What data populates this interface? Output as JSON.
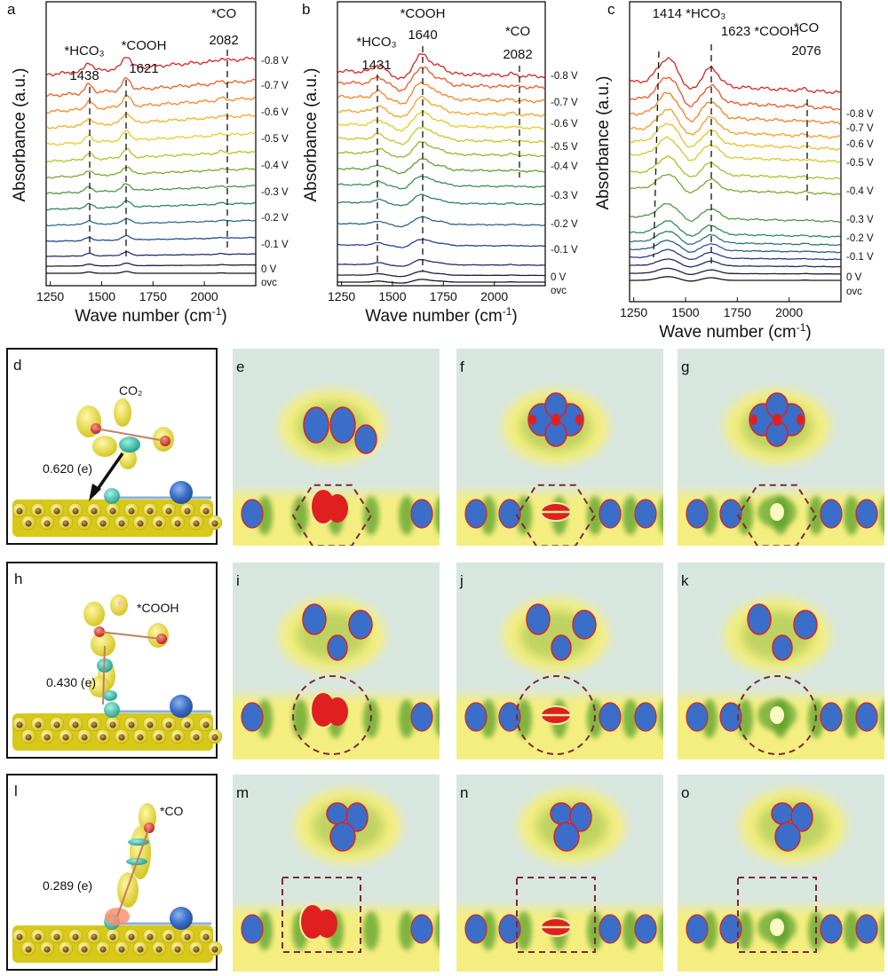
{
  "chart_data": [
    {
      "panel": "a",
      "type": "line",
      "xlabel": "Wave number (cm⁻¹)",
      "ylabel": "Absorbance (a.u.)",
      "xlim": [
        1230,
        2250
      ],
      "xticks": [
        "1250",
        "1500",
        "1750",
        "2000"
      ],
      "series": [
        "ovc",
        "0 V",
        "-0.1 V",
        "-0.2 V",
        "-0.3 V",
        "-0.4 V",
        "-0.5 V",
        "-0.6 V",
        "-0.7 V",
        "-0.8 V"
      ],
      "annotations": [
        {
          "text": [
            "*HCO₃",
            "1438"
          ],
          "x": 1438
        },
        {
          "text": [
            "*COOH",
            "1621"
          ],
          "x": 1621
        },
        {
          "text": [
            "*CO",
            "2082"
          ],
          "x": 2082
        }
      ]
    },
    {
      "panel": "b",
      "type": "line",
      "xlabel": "Wave number (cm⁻¹)",
      "ylabel": "Absorbance (a.u.)",
      "xlim": [
        1230,
        2250
      ],
      "xticks": [
        "1250",
        "1500",
        "1750",
        "2000"
      ],
      "series": [
        "ovc",
        "0 V",
        "-0.1 V",
        "-0.2 V",
        "-0.3 V",
        "-0.4 V",
        "-0.5 V",
        "-0.6 V",
        "-0.7 V",
        "-0.8 V"
      ],
      "annotations": [
        {
          "text": [
            "*HCO₃",
            "1431"
          ],
          "x": 1431
        },
        {
          "text": [
            "*COOH",
            "1640"
          ],
          "x": 1640
        },
        {
          "text": [
            "*CO",
            "2082"
          ],
          "x": 2082
        }
      ]
    },
    {
      "panel": "c",
      "type": "line",
      "xlabel": "Wave number (cm⁻¹)",
      "ylabel": "Absorbance (a.u.)",
      "xlim": [
        1230,
        2250
      ],
      "xticks": [
        "1250",
        "1500",
        "1750",
        "2000"
      ],
      "series": [
        "ovc",
        "0 V",
        "-0.1 V",
        "-0.2 V",
        "-0.3 V",
        "-0.4 V",
        "-0.5 V",
        "-0.6 V",
        "-0.7 V",
        "-0.8 V"
      ],
      "annotations": [
        {
          "text": [
            "1414 *HCO₃",
            ""
          ],
          "x": 1414
        },
        {
          "text": [
            "1623 *COOH",
            ""
          ],
          "x": 1623
        },
        {
          "text": [
            "*CO",
            "2076"
          ],
          "x": 2076
        }
      ]
    }
  ],
  "structure_panels": [
    {
      "label": "d",
      "species": "CO₂",
      "charge": "0.620 (e)"
    },
    {
      "label": "h",
      "species": "*COOH",
      "charge": "0.430 (e)"
    },
    {
      "label": "l",
      "species": "*CO",
      "charge": "0.289 (e)"
    }
  ],
  "density_maps": [
    {
      "label": "e",
      "outline": "hexagon",
      "center": "red"
    },
    {
      "label": "f",
      "outline": "hexagon",
      "center": "bar"
    },
    {
      "label": "g",
      "outline": "hexagon",
      "center": "ring"
    },
    {
      "label": "i",
      "outline": "circle",
      "center": "red"
    },
    {
      "label": "j",
      "outline": "circle",
      "center": "bar"
    },
    {
      "label": "k",
      "outline": "circle",
      "center": "ring"
    },
    {
      "label": "m",
      "outline": "square",
      "center": "red"
    },
    {
      "label": "n",
      "outline": "square",
      "center": "bar"
    },
    {
      "label": "o",
      "outline": "square",
      "center": "ring"
    }
  ],
  "colors": {
    "series": [
      "#1a1a1a",
      "#1c1c3a",
      "#252a66",
      "#2a3a8a",
      "#2f4f8a",
      "#2f6a6a",
      "#3a8a3a",
      "#8aaa20",
      "#e0c020",
      "#ff8020",
      "#e02020"
    ],
    "map_bg": "#d8e6e0",
    "map_yellow": "#f4ee80",
    "map_green": "#5aa02a",
    "map_blue": "#3a6ec8",
    "map_red": "#e02020",
    "slab_yellow": "#e0d020",
    "atom_brown": "#7a5a2a"
  }
}
